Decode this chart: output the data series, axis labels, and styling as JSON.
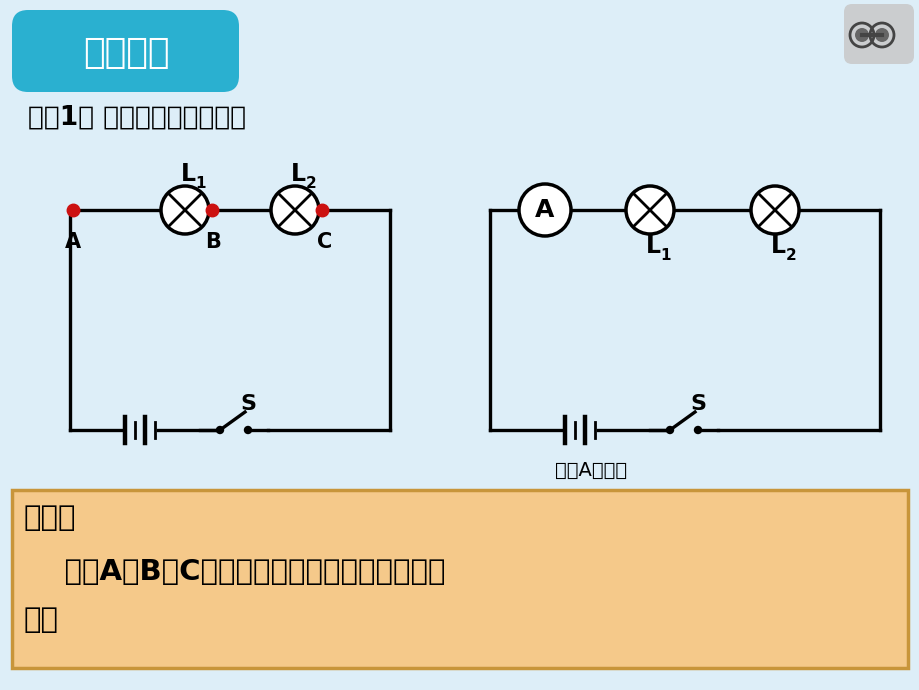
{
  "bg_color": "#ddeef8",
  "title_box_color": "#2ab0d0",
  "title_text": "实验探究",
  "subtitle": "探究1： 串联电路的电流规律",
  "bottom_box_fill": "#f5c98a",
  "bottom_box_border": "#c8953a",
  "bottom_title": "猜想：",
  "bottom_line1": "    流过A、B、C各点的电流大小可能存在什么关",
  "bottom_line2": "系？",
  "measure_text": "测量A点电流",
  "wire_color": "#111111",
  "red_dot": "#cc1111"
}
